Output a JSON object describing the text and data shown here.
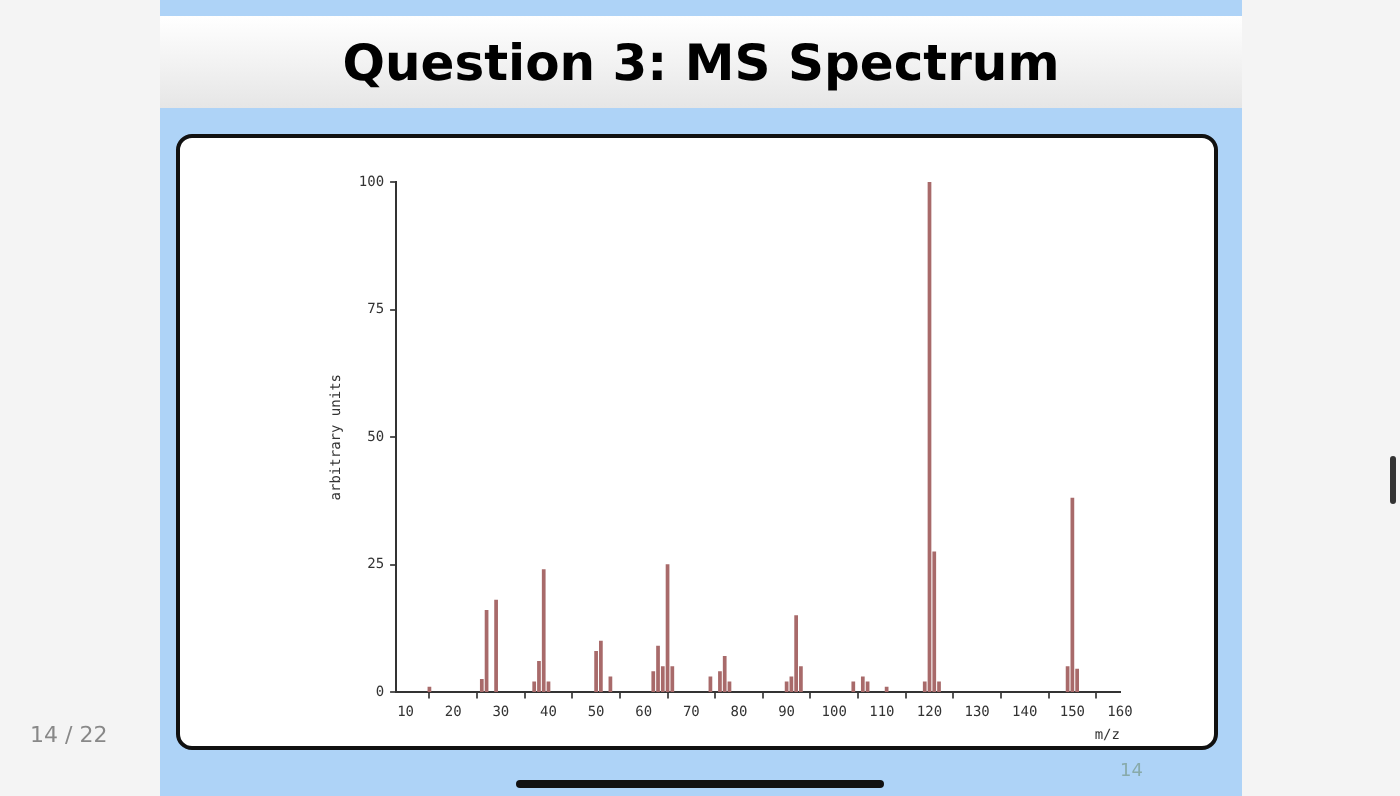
{
  "chart_data": {
    "type": "bar",
    "title": "Question 3: MS Spectrum",
    "xlabel": "m/z",
    "ylabel": "arbitrary units",
    "x": [
      15,
      26,
      27,
      29,
      37,
      38,
      39,
      40,
      50,
      51,
      53,
      62,
      63,
      64,
      65,
      66,
      74,
      76,
      77,
      78,
      90,
      91,
      92,
      93,
      104,
      106,
      107,
      111,
      119,
      120,
      121,
      122,
      149,
      150,
      151
    ],
    "series": [
      {
        "color": "#a86a6a",
        "values": [
          1,
          2.5,
          16,
          18,
          2,
          6,
          24,
          2,
          8,
          10,
          3,
          4,
          9,
          5,
          25,
          5,
          3,
          4,
          7,
          2,
          2,
          3,
          15,
          5,
          2,
          3,
          2,
          1,
          2,
          100,
          27.5,
          2,
          5,
          38,
          4.5
        ]
      }
    ],
    "xlim": [
      8,
      160
    ],
    "xticks": [
      10,
      20,
      30,
      40,
      50,
      60,
      70,
      80,
      90,
      100,
      110,
      120,
      130,
      140,
      150,
      160
    ],
    "ylim": [
      0,
      100
    ],
    "yticks": [
      0,
      25,
      50,
      75,
      100
    ],
    "grid": false,
    "legend": false,
    "annotations": [
      "14",
      "14 / 22"
    ]
  }
}
